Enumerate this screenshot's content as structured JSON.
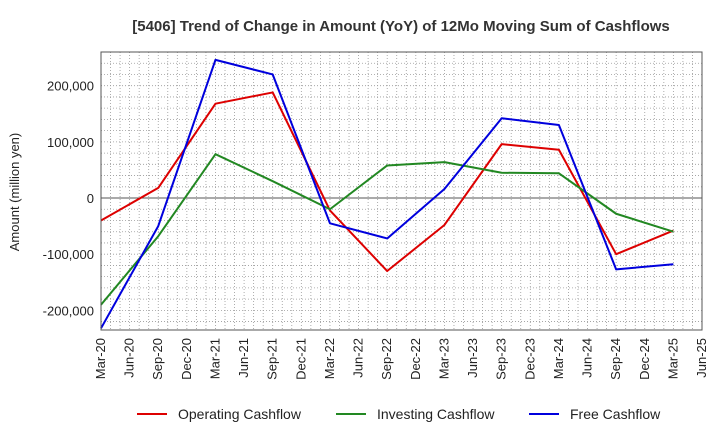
{
  "chart_data": {
    "type": "line",
    "title": "[5406]  Trend of Change in Amount (YoY) of 12Mo Moving Sum of Cashflows",
    "xlabel": "",
    "ylabel": "Amount (million yen)",
    "ylim": [
      -235000,
      260000
    ],
    "yticks": [
      -200000,
      -100000,
      0,
      100000,
      200000
    ],
    "ytick_labels": [
      "-200,000",
      "-100,000",
      "0",
      "100,000",
      "200,000"
    ],
    "x_tick_labels": [
      "Mar-20",
      "Jun-20",
      "Sep-20",
      "Dec-20",
      "Mar-21",
      "Jun-21",
      "Sep-21",
      "Dec-21",
      "Mar-22",
      "Jun-22",
      "Sep-22",
      "Dec-22",
      "Mar-23",
      "Jun-23",
      "Sep-23",
      "Dec-23",
      "Mar-24",
      "Jun-24",
      "Sep-24",
      "Dec-24",
      "Mar-25",
      "Jun-25"
    ],
    "grid": true,
    "legend_position": "bottom",
    "series": [
      {
        "name": "Operating Cashflow",
        "color": "#dd0000",
        "points": [
          {
            "x": "Mar-20",
            "y": -40000
          },
          {
            "x": "Sep-20",
            "y": 18000
          },
          {
            "x": "Mar-21",
            "y": 168000
          },
          {
            "x": "Sep-21",
            "y": 188000
          },
          {
            "x": "Mar-22",
            "y": -22000
          },
          {
            "x": "Sep-22",
            "y": -130000
          },
          {
            "x": "Mar-23",
            "y": -48000
          },
          {
            "x": "Sep-23",
            "y": 96000
          },
          {
            "x": "Mar-24",
            "y": 86000
          },
          {
            "x": "Sep-24",
            "y": -100000
          },
          {
            "x": "Mar-25",
            "y": -58000
          }
        ]
      },
      {
        "name": "Investing Cashflow",
        "color": "#228822",
        "points": [
          {
            "x": "Mar-20",
            "y": -190000
          },
          {
            "x": "Sep-20",
            "y": -68000
          },
          {
            "x": "Mar-21",
            "y": 78000
          },
          {
            "x": "Sep-21",
            "y": 30000
          },
          {
            "x": "Mar-22",
            "y": -20000
          },
          {
            "x": "Sep-22",
            "y": 58000
          },
          {
            "x": "Mar-23",
            "y": 64000
          },
          {
            "x": "Sep-23",
            "y": 45000
          },
          {
            "x": "Mar-24",
            "y": 44000
          },
          {
            "x": "Sep-24",
            "y": -28000
          },
          {
            "x": "Mar-25",
            "y": -60000
          }
        ]
      },
      {
        "name": "Free Cashflow",
        "color": "#0000dd",
        "points": [
          {
            "x": "Mar-20",
            "y": -232000
          },
          {
            "x": "Sep-20",
            "y": -50000
          },
          {
            "x": "Mar-21",
            "y": 246000
          },
          {
            "x": "Sep-21",
            "y": 220000
          },
          {
            "x": "Mar-22",
            "y": -45000
          },
          {
            "x": "Sep-22",
            "y": -72000
          },
          {
            "x": "Mar-23",
            "y": 16000
          },
          {
            "x": "Sep-23",
            "y": 142000
          },
          {
            "x": "Mar-24",
            "y": 130000
          },
          {
            "x": "Sep-24",
            "y": -127000
          },
          {
            "x": "Mar-25",
            "y": -118000
          }
        ]
      }
    ]
  }
}
